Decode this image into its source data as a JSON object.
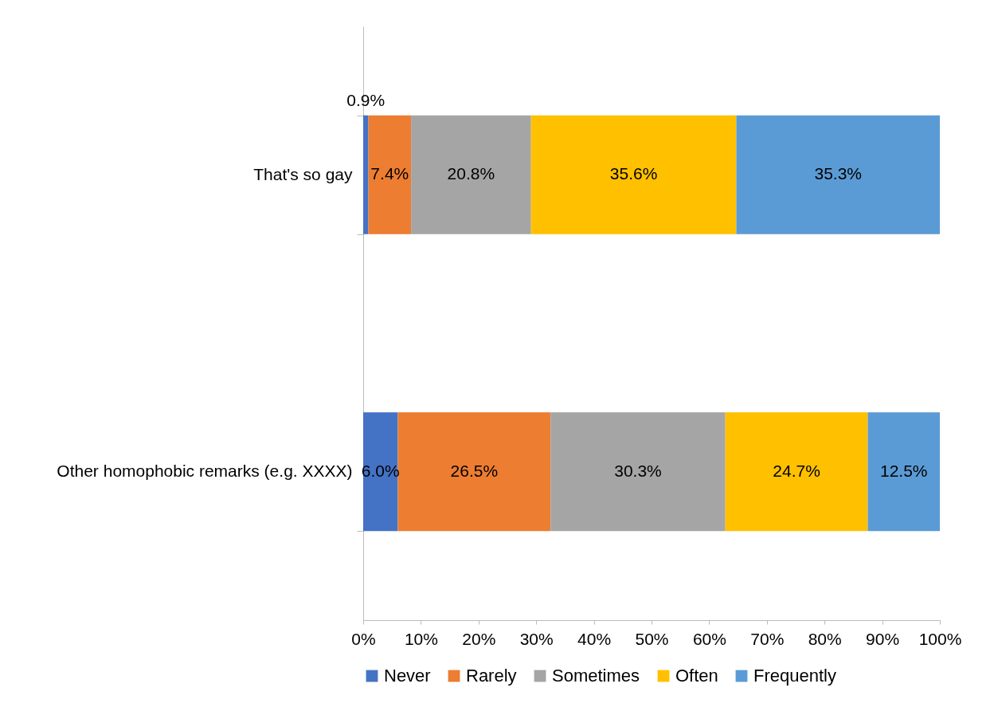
{
  "chart_data": {
    "type": "bar",
    "orientation": "horizontal",
    "stacked": true,
    "categories": [
      "That's so gay",
      "Other homophobic remarks (e.g. XXXX)"
    ],
    "series": [
      {
        "name": "Never",
        "color": "#4472c4",
        "values": [
          0.9,
          6.0
        ],
        "value_labels": [
          "0.9%",
          "6.0%"
        ]
      },
      {
        "name": "Rarely",
        "color": "#ed7d31",
        "values": [
          7.4,
          26.5
        ],
        "value_labels": [
          "7.4%",
          "26.5%"
        ]
      },
      {
        "name": "Sometimes",
        "color": "#a5a5a5",
        "values": [
          20.8,
          30.3
        ],
        "value_labels": [
          "20.8%",
          "30.3%"
        ]
      },
      {
        "name": "Often",
        "color": "#ffc000",
        "values": [
          35.6,
          24.7
        ],
        "value_labels": [
          "35.6%",
          "24.7%"
        ]
      },
      {
        "name": "Frequently",
        "color": "#5b9bd5",
        "values": [
          35.3,
          12.5
        ],
        "value_labels": [
          "35.3%",
          "12.5%"
        ]
      }
    ],
    "xlim": [
      0,
      100
    ],
    "xticks": [
      {
        "value": 0,
        "label": "0%"
      },
      {
        "value": 10,
        "label": "10%"
      },
      {
        "value": 20,
        "label": "20%"
      },
      {
        "value": 30,
        "label": "30%"
      },
      {
        "value": 40,
        "label": "40%"
      },
      {
        "value": 50,
        "label": "50%"
      },
      {
        "value": 60,
        "label": "60%"
      },
      {
        "value": 70,
        "label": "70%"
      },
      {
        "value": 80,
        "label": "80%"
      },
      {
        "value": 90,
        "label": "90%"
      },
      {
        "value": 100,
        "label": "100%"
      }
    ],
    "grid": false,
    "legend": "bottom"
  }
}
